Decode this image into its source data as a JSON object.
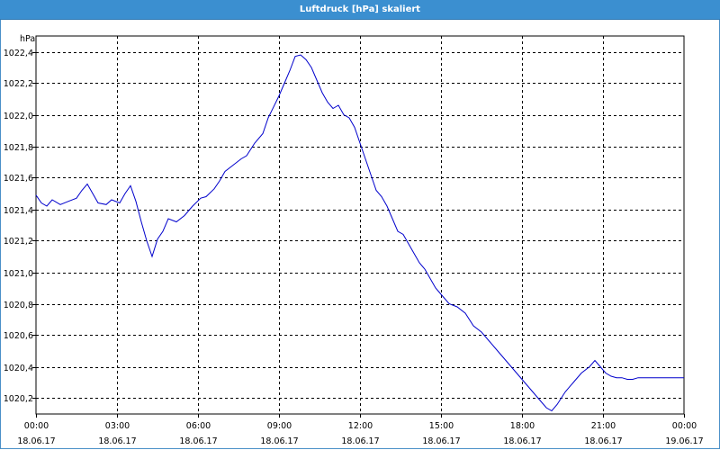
{
  "window": {
    "title": "Luftdruck [hPa] skaliert"
  },
  "chart_data": {
    "type": "line",
    "title": "Luftdruck [hPa] skaliert",
    "ylabel": "hPa",
    "xlabel": "",
    "ylim": [
      1020.1,
      1022.5
    ],
    "xlim": [
      0,
      24
    ],
    "grid": true,
    "x_ticks": [
      {
        "x": 0,
        "time": "00:00",
        "date": "18.06.17"
      },
      {
        "x": 3,
        "time": "03:00",
        "date": "18.06.17"
      },
      {
        "x": 6,
        "time": "06:00",
        "date": "18.06.17"
      },
      {
        "x": 9,
        "time": "09:00",
        "date": "18.06.17"
      },
      {
        "x": 12,
        "time": "12:00",
        "date": "18.06.17"
      },
      {
        "x": 15,
        "time": "15:00",
        "date": "18.06.17"
      },
      {
        "x": 18,
        "time": "18:00",
        "date": "18.06.17"
      },
      {
        "x": 21,
        "time": "21:00",
        "date": "18.06.17"
      },
      {
        "x": 24,
        "time": "00:00",
        "date": "19.06.17"
      }
    ],
    "y_ticks": [
      {
        "v": 1020.2,
        "label": "1020,2"
      },
      {
        "v": 1020.4,
        "label": "1020,4"
      },
      {
        "v": 1020.6,
        "label": "1020,6"
      },
      {
        "v": 1020.8,
        "label": "1020,8"
      },
      {
        "v": 1021.0,
        "label": "1021,0"
      },
      {
        "v": 1021.2,
        "label": "1021,2"
      },
      {
        "v": 1021.4,
        "label": "1021,4"
      },
      {
        "v": 1021.6,
        "label": "1021,6"
      },
      {
        "v": 1021.8,
        "label": "1021,8"
      },
      {
        "v": 1022.0,
        "label": "1022,0"
      },
      {
        "v": 1022.2,
        "label": "1022,2"
      },
      {
        "v": 1022.4,
        "label": "1022,4"
      }
    ],
    "line_color": "#0000cc",
    "series": [
      {
        "x": [
          0.0,
          0.2,
          0.4,
          0.6,
          0.9,
          1.2,
          1.5,
          1.7,
          1.9,
          2.1,
          2.3,
          2.6,
          2.8,
          3.1,
          3.3,
          3.5,
          3.7,
          3.9,
          4.1,
          4.3,
          4.5,
          4.7,
          4.9,
          5.2,
          5.5,
          5.8,
          6.1,
          6.3,
          6.6,
          6.8,
          7.0,
          7.3,
          7.6,
          7.8,
          8.1,
          8.4,
          8.6,
          8.8,
          9.0,
          9.2,
          9.4,
          9.6,
          9.8,
          10.0,
          10.2,
          10.4,
          10.6,
          10.8,
          11.0,
          11.2,
          11.4,
          11.6,
          11.8,
          12.0,
          12.2,
          12.4,
          12.6,
          12.8,
          13.0,
          13.2,
          13.4,
          13.6,
          13.8,
          14.0,
          14.2,
          14.4,
          14.6,
          14.8,
          15.0,
          15.3,
          15.6,
          15.9,
          16.2,
          16.5,
          16.8,
          17.1,
          17.3,
          17.5,
          17.7,
          17.9,
          18.1,
          18.3,
          18.5,
          18.7,
          18.9,
          19.1,
          19.3,
          19.6,
          19.9,
          20.2,
          20.5,
          20.7,
          20.9,
          21.1,
          21.3,
          21.5,
          21.7,
          21.9,
          22.1,
          22.3,
          22.6,
          22.8,
          23.0,
          23.2,
          23.4,
          23.6,
          23.8,
          24.0
        ],
        "y": [
          1021.49,
          1021.44,
          1021.42,
          1021.46,
          1021.43,
          1021.45,
          1021.47,
          1021.52,
          1021.56,
          1021.5,
          1021.44,
          1021.43,
          1021.46,
          1021.44,
          1021.5,
          1021.55,
          1021.45,
          1021.32,
          1021.2,
          1021.1,
          1021.21,
          1021.26,
          1021.34,
          1021.32,
          1021.36,
          1021.42,
          1021.47,
          1021.48,
          1021.53,
          1021.58,
          1021.64,
          1021.68,
          1021.72,
          1021.74,
          1021.82,
          1021.88,
          1021.98,
          1022.05,
          1022.12,
          1022.2,
          1022.28,
          1022.37,
          1022.38,
          1022.35,
          1022.3,
          1022.22,
          1022.14,
          1022.08,
          1022.04,
          1022.06,
          1022.0,
          1021.98,
          1021.92,
          1021.82,
          1021.72,
          1021.62,
          1021.52,
          1021.48,
          1021.42,
          1021.34,
          1021.26,
          1021.24,
          1021.18,
          1021.12,
          1021.06,
          1021.02,
          1020.96,
          1020.9,
          1020.86,
          1020.8,
          1020.78,
          1020.74,
          1020.66,
          1020.62,
          1020.56,
          1020.5,
          1020.46,
          1020.42,
          1020.38,
          1020.34,
          1020.3,
          1020.26,
          1020.22,
          1020.18,
          1020.14,
          1020.12,
          1020.16,
          1020.24,
          1020.3,
          1020.36,
          1020.4,
          1020.44,
          1020.4,
          1020.36,
          1020.34,
          1020.33,
          1020.33,
          1020.32,
          1020.32,
          1020.33,
          1020.33,
          1020.33,
          1020.33,
          1020.33,
          1020.33,
          1020.33,
          1020.33,
          1020.33
        ]
      }
    ]
  }
}
